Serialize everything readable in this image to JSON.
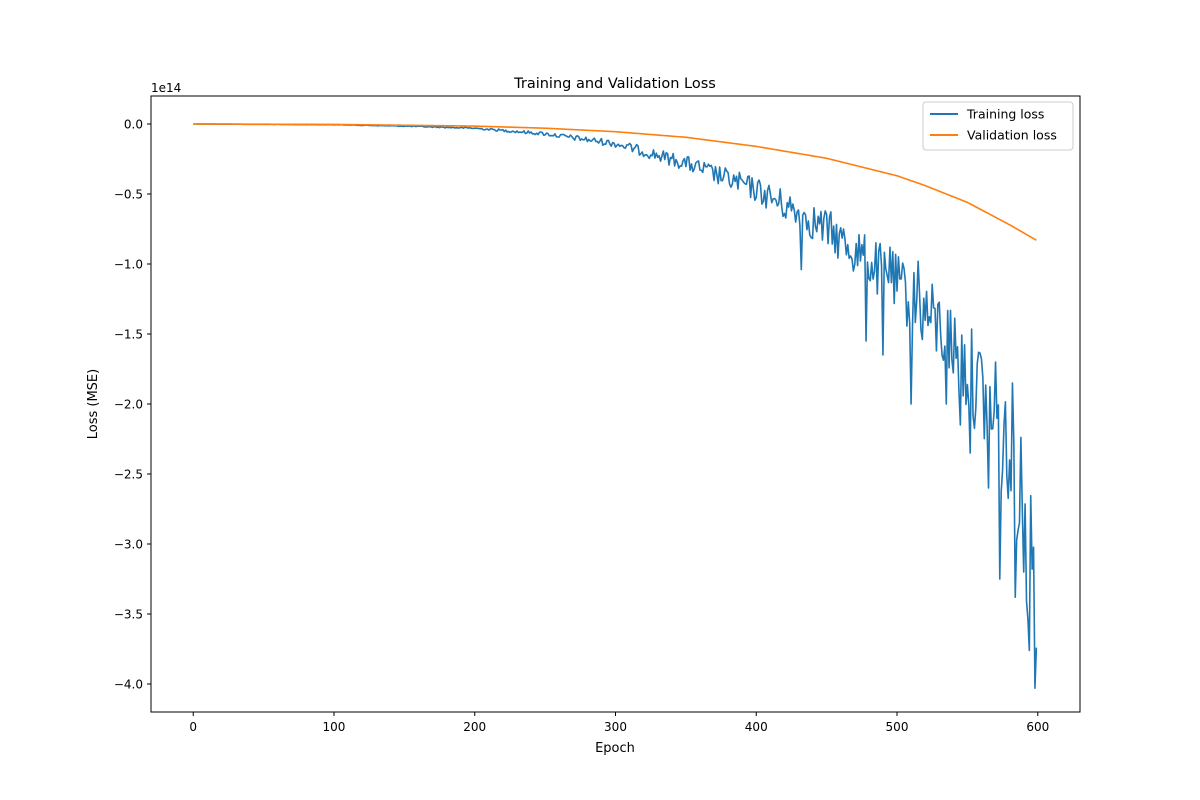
{
  "chart_data": {
    "type": "line",
    "title": "Training and Validation Loss",
    "xlabel": "Epoch",
    "ylabel": "Loss (MSE)",
    "y_offset_label": "1e14",
    "y_scale": 100000000000000.0,
    "xlim": [
      -30,
      630
    ],
    "ylim": [
      -4.2,
      0.2
    ],
    "x_ticks": [
      0,
      100,
      200,
      300,
      400,
      500,
      600
    ],
    "y_ticks": [
      0.0,
      -0.5,
      -1.0,
      -1.5,
      -2.0,
      -2.5,
      -3.0,
      -3.5,
      -4.0
    ],
    "y_tick_labels": [
      "0.0",
      "−0.5",
      "−1.0",
      "−1.5",
      "−2.0",
      "−2.5",
      "−3.0",
      "−3.5",
      "−4.0"
    ],
    "grid": false,
    "legend_position": "top-right",
    "series": [
      {
        "name": "Training loss",
        "color": "#1f77b4",
        "x_range": [
          0,
          599
        ],
        "trend_anchors": [
          [
            0,
            0.0
          ],
          [
            100,
            -0.005
          ],
          [
            150,
            -0.015
          ],
          [
            200,
            -0.03
          ],
          [
            250,
            -0.07
          ],
          [
            300,
            -0.14
          ],
          [
            350,
            -0.28
          ],
          [
            400,
            -0.47
          ],
          [
            450,
            -0.75
          ],
          [
            500,
            -1.15
          ],
          [
            530,
            -1.45
          ],
          [
            560,
            -1.9
          ],
          [
            580,
            -2.4
          ],
          [
            590,
            -2.6
          ],
          [
            599,
            -3.8
          ]
        ],
        "noise_fraction": 0.12,
        "noisy_points": [
          [
            432,
            -1.04
          ],
          [
            478,
            -1.55
          ],
          [
            490,
            -1.65
          ],
          [
            495,
            -0.88
          ],
          [
            510,
            -2.0
          ],
          [
            515,
            -0.98
          ],
          [
            535,
            -2.0
          ],
          [
            545,
            -2.15
          ],
          [
            552,
            -2.35
          ],
          [
            565,
            -2.6
          ],
          [
            570,
            -1.7
          ],
          [
            573,
            -3.25
          ],
          [
            582,
            -1.85
          ],
          [
            584,
            -3.38
          ],
          [
            590,
            -3.2
          ],
          [
            594,
            -3.76
          ],
          [
            596,
            -3.18
          ],
          [
            598,
            -4.03
          ],
          [
            599,
            -3.74
          ]
        ]
      },
      {
        "name": "Validation loss",
        "color": "#ff7f0e",
        "x_range": [
          0,
          599
        ],
        "trend_anchors": [
          [
            0,
            0.0
          ],
          [
            100,
            -0.003
          ],
          [
            200,
            -0.015
          ],
          [
            250,
            -0.03
          ],
          [
            300,
            -0.055
          ],
          [
            350,
            -0.095
          ],
          [
            400,
            -0.16
          ],
          [
            450,
            -0.245
          ],
          [
            500,
            -0.37
          ],
          [
            520,
            -0.44
          ],
          [
            550,
            -0.56
          ],
          [
            580,
            -0.72
          ],
          [
            599,
            -0.83
          ]
        ]
      }
    ]
  }
}
